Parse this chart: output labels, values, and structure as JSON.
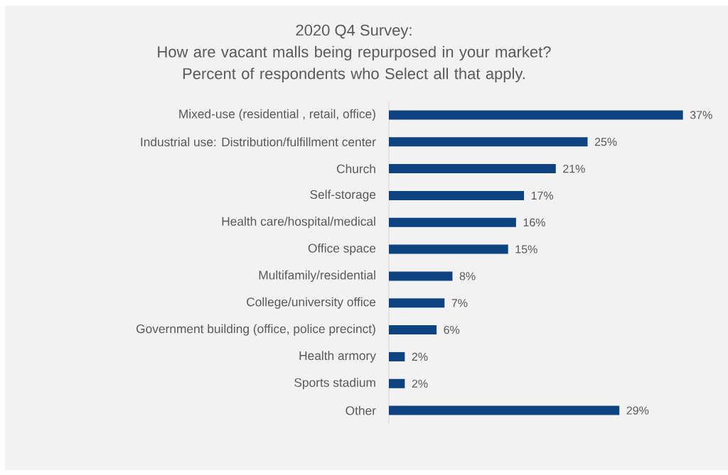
{
  "chart_data": {
    "type": "bar",
    "orientation": "horizontal",
    "title": "2020 Q4 Survey:",
    "subtitle": "How are vacant malls being repurposed in your market? Percent of respondents who Select all that apply.",
    "categories": [
      "Mixed-use (residential , retail, office)",
      "Industrial use: Distribution/fulfillment center",
      "Church",
      "Self-storage",
      "Health care/hospital/medical",
      "Office space",
      "Multifamily/residential",
      "College/university office",
      "Government building (office, police precinct)",
      "Health armory",
      "Sports stadium",
      "Other"
    ],
    "values": [
      37,
      25,
      21,
      17,
      16,
      15,
      8,
      7,
      6,
      2,
      2,
      29
    ],
    "value_labels": [
      "37%",
      "25%",
      "21%",
      "17%",
      "16%",
      "15%",
      "8%",
      "7%",
      "6%",
      "2%",
      "2%",
      "29%"
    ],
    "color": "#0e4382"
  }
}
